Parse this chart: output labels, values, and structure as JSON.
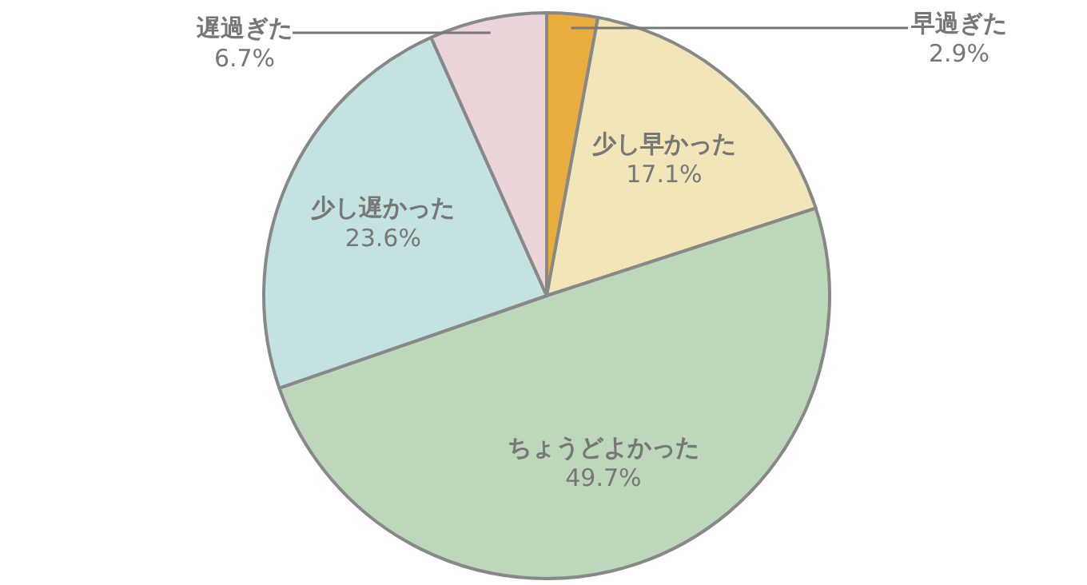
{
  "chart_data": {
    "type": "pie",
    "categories": [
      "早過ぎた",
      "少し早かった",
      "ちょうどよかった",
      "少し遅かった",
      "遅過ぎた"
    ],
    "values": [
      2.9,
      17.1,
      49.7,
      23.6,
      6.7
    ],
    "colors": [
      "#e8ad3e",
      "#f2e6b9",
      "#bcd7b9",
      "#c3e2e1",
      "#ecd5d8"
    ],
    "value_labels": [
      "2.9%",
      "17.1%",
      "49.7%",
      "23.6%",
      "6.7%"
    ]
  }
}
